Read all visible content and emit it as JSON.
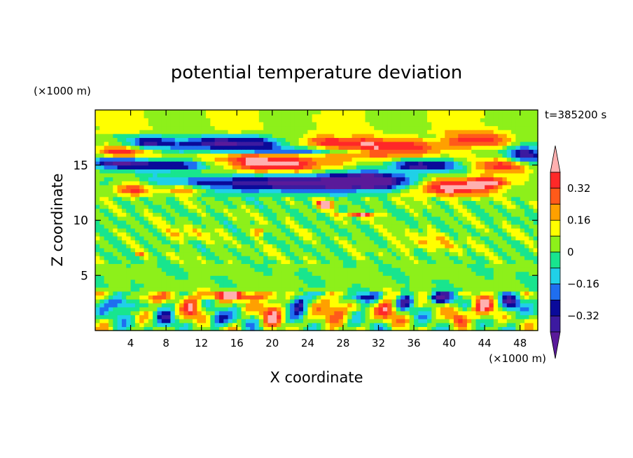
{
  "chart_data": {
    "type": "heatmap",
    "title": "potential temperature deviation",
    "xlabel": "X coordinate",
    "ylabel": "Z coordinate",
    "x_unit": "(×1000 m)",
    "y_unit": "(×1000 m)",
    "time_label": "t=385200 s",
    "xlim": [
      0,
      50
    ],
    "ylim": [
      0,
      20
    ],
    "x_ticks": [
      4,
      8,
      12,
      16,
      20,
      24,
      28,
      32,
      36,
      40,
      44,
      48
    ],
    "y_ticks": [
      5,
      10,
      15
    ],
    "colorbar": {
      "levels": [
        -0.4,
        -0.32,
        -0.24,
        -0.16,
        -0.08,
        0,
        0.08,
        0.16,
        0.24,
        0.32,
        0.4
      ],
      "colors": [
        "#5a1a9a",
        "#3c1aa0",
        "#0a0a9a",
        "#1f6ef0",
        "#20d0e8",
        "#18e58e",
        "#8df01a",
        "#ffff00",
        "#ffa000",
        "#ff5a1a",
        "#ff2828",
        "#ffb0b0"
      ],
      "tick_labels": [
        "0.32",
        "0.16",
        "0",
        "−0.16",
        "−0.32"
      ],
      "tick_values": [
        0.32,
        0.16,
        0,
        -0.16,
        -0.32
      ]
    },
    "background_value": 0.02,
    "features": [
      {
        "x": 3,
        "z": 16.2,
        "rx": 3,
        "rz": 0.5,
        "v": 0.35
      },
      {
        "x": 6,
        "z": 17.1,
        "rx": 1.8,
        "rz": 0.6,
        "v": -0.3
      },
      {
        "x": 2.5,
        "z": 15.3,
        "rx": 2.5,
        "rz": 0.5,
        "v": -0.35
      },
      {
        "x": 9,
        "z": 15.0,
        "rx": 6,
        "rz": 0.5,
        "v": -0.45
      },
      {
        "x": 19,
        "z": 15.2,
        "rx": 8,
        "rz": 0.9,
        "v": 0.45
      },
      {
        "x": 15,
        "z": 17.0,
        "rx": 7,
        "rz": 0.6,
        "v": -0.45
      },
      {
        "x": 23,
        "z": 16.3,
        "rx": 9,
        "rz": 0.3,
        "v": -0.3
      },
      {
        "x": 27,
        "z": 17.2,
        "rx": 5,
        "rz": 0.6,
        "v": 0.3
      },
      {
        "x": 33,
        "z": 16.5,
        "rx": 6,
        "rz": 0.8,
        "v": 0.4
      },
      {
        "x": 37,
        "z": 15.0,
        "rx": 4,
        "rz": 0.5,
        "v": -0.4
      },
      {
        "x": 43,
        "z": 17.3,
        "rx": 4,
        "rz": 0.7,
        "v": 0.35
      },
      {
        "x": 46,
        "z": 15.0,
        "rx": 3,
        "rz": 0.7,
        "v": 0.35
      },
      {
        "x": 48.5,
        "z": 16.0,
        "rx": 2,
        "rz": 0.8,
        "v": -0.4
      },
      {
        "x": 21,
        "z": 13.4,
        "rx": 12,
        "rz": 0.8,
        "v": -0.45
      },
      {
        "x": 31,
        "z": 13.6,
        "rx": 5,
        "rz": 0.8,
        "v": -0.45
      },
      {
        "x": 40,
        "z": 13.0,
        "rx": 5,
        "rz": 0.8,
        "v": 0.45
      },
      {
        "x": 44.5,
        "z": 13.5,
        "rx": 2.5,
        "rz": 0.5,
        "v": 0.35
      },
      {
        "x": 10,
        "z": 12.8,
        "rx": 3,
        "rz": 0.4,
        "v": 0.3
      },
      {
        "x": 4,
        "z": 12.8,
        "rx": 2,
        "rz": 0.6,
        "v": 0.35
      },
      {
        "x": 26,
        "z": 11.5,
        "rx": 1,
        "rz": 0.4,
        "v": 0.45
      },
      {
        "x": 30,
        "z": 10.5,
        "rx": 2,
        "rz": 0.2,
        "v": 0.35
      },
      {
        "x": 18.5,
        "z": 9.0,
        "rx": 0.7,
        "rz": 0.3,
        "v": 0.3
      },
      {
        "x": 5,
        "z": 7.0,
        "rx": 0.5,
        "rz": 0.2,
        "v": 0.25
      },
      {
        "x": 10,
        "z": 8.8,
        "rx": 3,
        "rz": 0.6,
        "v": 0.12
      },
      {
        "x": 38,
        "z": 8.0,
        "rx": 4,
        "rz": 0.8,
        "v": 0.12
      },
      {
        "x": 16,
        "z": 3.2,
        "rx": 3.5,
        "rz": 0.4,
        "v": 0.42
      },
      {
        "x": 6,
        "z": 3.0,
        "rx": 1.5,
        "rz": 0.5,
        "v": 0.35
      },
      {
        "x": 3,
        "z": 2.5,
        "rx": 1.5,
        "rz": 0.6,
        "v": -0.38
      },
      {
        "x": 11,
        "z": 2.0,
        "rx": 1.2,
        "rz": 1.2,
        "v": 0.3
      },
      {
        "x": 20,
        "z": 1.8,
        "rx": 1.2,
        "rz": 1.4,
        "v": 0.32
      },
      {
        "x": 23,
        "z": 2.5,
        "rx": 1,
        "rz": 1.0,
        "v": -0.35
      },
      {
        "x": 27,
        "z": 2.0,
        "rx": 1.5,
        "rz": 1.2,
        "v": 0.32
      },
      {
        "x": 30,
        "z": 3.0,
        "rx": 1.5,
        "rz": 0.5,
        "v": -0.38
      },
      {
        "x": 33,
        "z": 2.0,
        "rx": 1.2,
        "rz": 1.2,
        "v": 0.3
      },
      {
        "x": 35,
        "z": 2.7,
        "rx": 1,
        "rz": 0.7,
        "v": -0.3
      },
      {
        "x": 39,
        "z": 3.0,
        "rx": 1.5,
        "rz": 0.5,
        "v": -0.38
      },
      {
        "x": 44,
        "z": 2.2,
        "rx": 1.5,
        "rz": 1.0,
        "v": 0.32
      },
      {
        "x": 47,
        "z": 2.5,
        "rx": 1.2,
        "rz": 0.8,
        "v": -0.35
      },
      {
        "x": 8,
        "z": 1.0,
        "rx": 1,
        "rz": 0.7,
        "v": -0.3
      },
      {
        "x": 14,
        "z": 1.0,
        "rx": 1,
        "rz": 0.7,
        "v": -0.3
      },
      {
        "x": 41,
        "z": 1.2,
        "rx": 1,
        "rz": 0.8,
        "v": 0.3
      }
    ]
  }
}
